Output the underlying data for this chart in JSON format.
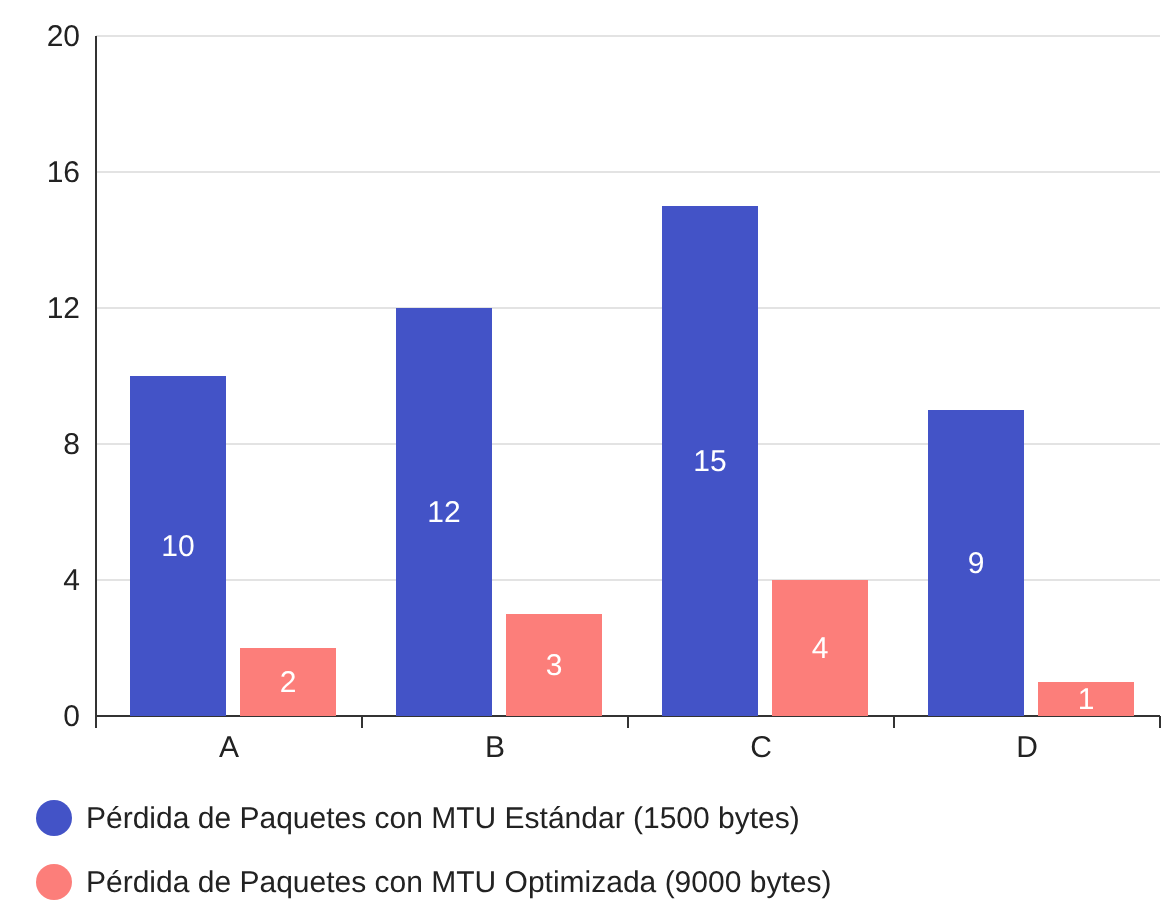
{
  "chart_data": {
    "type": "bar",
    "categories": [
      "A",
      "B",
      "C",
      "D"
    ],
    "series": [
      {
        "name": "Pérdida de Paquetes con MTU Estándar (1500 bytes)",
        "color": "#4353c7",
        "values": [
          10,
          12,
          15,
          9
        ]
      },
      {
        "name": "Pérdida de Paquetes con MTU Optimizada (9000 bytes)",
        "color": "#fc7e7a",
        "values": [
          2,
          3,
          4,
          1
        ]
      }
    ],
    "ylim": [
      0,
      20
    ],
    "yticks": [
      0,
      4,
      8,
      12,
      16,
      20
    ],
    "grid": "y",
    "legend": "bottom",
    "data_labels": true
  }
}
